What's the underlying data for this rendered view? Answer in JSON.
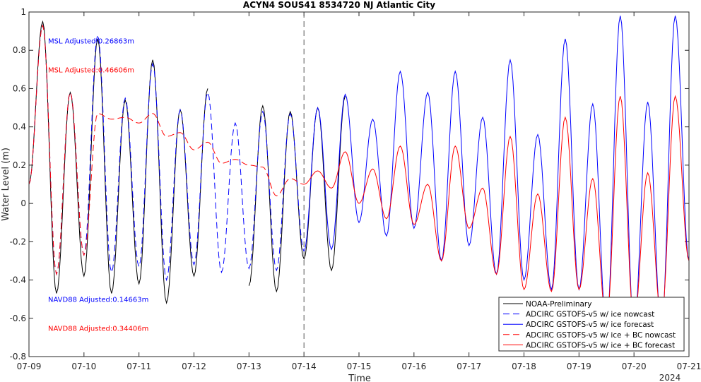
{
  "chart_data": {
    "type": "line",
    "title": "ACYN4 SOUS41 8534720 NJ Atlantic City",
    "xlabel": "Time",
    "ylabel": "Water Level (m)",
    "year_label": "2024",
    "x_ticks": [
      "07-09",
      "07-10",
      "07-11",
      "07-12",
      "07-13",
      "07-14",
      "07-15",
      "07-16",
      "07-17",
      "07-18",
      "07-19",
      "07-20",
      "07-21"
    ],
    "xlim": [
      "07-09 00:00",
      "07-21 00:00"
    ],
    "ylim": [
      -0.8,
      1
    ],
    "y_ticks": [
      -0.8,
      -0.6,
      -0.4,
      -0.2,
      0,
      0.2,
      0.4,
      0.6,
      0.8,
      1
    ],
    "nowcast_forecast_boundary": "07-14 00:00",
    "annotations": [
      {
        "text": "MSL Adjusted:0.26863m",
        "color": "#0000ff",
        "at_y": 0.85
      },
      {
        "text": "MSL Adjusted:0.46606m",
        "color": "#ff0000",
        "at_y": 0.7
      },
      {
        "text": "NAVD88 Adjusted:0.14663m",
        "color": "#0000ff",
        "at_y": -0.5
      },
      {
        "text": "NAVD88 Adjusted:0.34406m",
        "color": "#ff0000",
        "at_y": -0.65
      }
    ],
    "legend_position": "bottom-right",
    "series": [
      {
        "name": "NOAA-Preliminary",
        "color": "#000000",
        "dash": "solid",
        "x": [
          "07-09 00:00",
          "07-09 06:00",
          "07-09 12:00",
          "07-09 18:00",
          "07-10 00:00",
          "07-10 06:00",
          "07-10 12:00",
          "07-10 18:00",
          "07-11 00:00",
          "07-11 06:00",
          "07-11 12:00",
          "07-11 18:00",
          "07-12 00:00",
          "07-12 06:00",
          "07-12 12:00",
          "07-12 18:00",
          "07-13 00:00",
          "07-13 06:00",
          "07-13 12:00",
          "07-13 18:00",
          "07-14 00:00",
          "07-14 06:00",
          "07-14 12:00",
          "07-14 18:00"
        ],
        "y": [
          0.1,
          0.95,
          -0.47,
          0.58,
          -0.38,
          0.86,
          -0.47,
          0.54,
          -0.42,
          0.75,
          -0.52,
          0.49,
          -0.38,
          0.6,
          null,
          null,
          -0.43,
          0.51,
          -0.46,
          0.48,
          -0.29,
          0.5,
          -0.35,
          0.56
        ]
      },
      {
        "name": "ADCIRC GSTOFS-v5 w/ ice nowcast",
        "color": "#0000ff",
        "dash": "dashed",
        "x": [
          "07-09 00:00",
          "07-09 06:00",
          "07-09 12:00",
          "07-09 18:00",
          "07-10 00:00",
          "07-10 06:00",
          "07-10 12:00",
          "07-10 18:00",
          "07-11 00:00",
          "07-11 06:00",
          "07-11 12:00",
          "07-11 18:00",
          "07-12 00:00",
          "07-12 06:00",
          "07-12 12:00",
          "07-12 18:00",
          "07-13 00:00",
          "07-13 06:00",
          "07-13 12:00",
          "07-13 18:00",
          "07-14 00:00"
        ],
        "y": [
          0.1,
          0.93,
          -0.37,
          0.58,
          -0.27,
          0.88,
          -0.36,
          0.55,
          -0.33,
          0.73,
          -0.4,
          0.49,
          -0.32,
          0.58,
          -0.36,
          0.42,
          -0.34,
          0.48,
          -0.35,
          0.47,
          -0.25
        ]
      },
      {
        "name": "ADCIRC GSTOFS-v5 w/ ice forecast",
        "color": "#0000ff",
        "dash": "solid",
        "x": [
          "07-14 00:00",
          "07-14 06:00",
          "07-14 12:00",
          "07-14 18:00",
          "07-15 00:00",
          "07-15 06:00",
          "07-15 12:00",
          "07-15 18:00",
          "07-16 00:00",
          "07-16 06:00",
          "07-16 12:00",
          "07-16 18:00",
          "07-17 00:00",
          "07-17 06:00",
          "07-17 12:00",
          "07-17 18:00",
          "07-18 00:00",
          "07-18 06:00",
          "07-18 12:00",
          "07-18 18:00",
          "07-19 00:00",
          "07-19 06:00",
          "07-19 12:00",
          "07-19 18:00",
          "07-20 00:00",
          "07-20 06:00",
          "07-20 12:00",
          "07-20 18:00",
          "07-21 00:00"
        ],
        "y": [
          -0.25,
          0.5,
          -0.24,
          0.57,
          -0.1,
          0.44,
          -0.17,
          0.69,
          -0.13,
          0.58,
          -0.3,
          0.69,
          -0.22,
          0.45,
          -0.37,
          0.75,
          -0.4,
          0.36,
          -0.45,
          0.86,
          -0.45,
          0.52,
          -0.65,
          0.98,
          -0.65,
          0.53,
          -0.65,
          0.98,
          -0.3
        ]
      },
      {
        "name": "ADCIRC GSTOFS-v5 w/ ice + BC nowcast",
        "color": "#ff0000",
        "dash": "dashed",
        "x": [
          "07-09 00:00",
          "07-09 06:00",
          "07-09 12:00",
          "07-09 18:00",
          "07-10 00:00",
          "07-10 06:00",
          "07-10 12:00",
          "07-10 18:00",
          "07-11 00:00",
          "07-11 06:00",
          "07-11 12:00",
          "07-11 18:00",
          "07-12 00:00",
          "07-12 06:00",
          "07-12 12:00",
          "07-12 18:00",
          "07-13 00:00",
          "07-13 06:00",
          "07-13 12:00",
          "07-13 18:00",
          "07-14 00:00"
        ],
        "y": [
          0.1,
          0.93,
          -0.37,
          0.58,
          -0.27,
          0.47,
          0.44,
          0.45,
          0.42,
          0.47,
          0.35,
          0.37,
          0.28,
          0.32,
          0.21,
          0.23,
          0.2,
          0.19,
          0.04,
          0.13,
          0.1
        ]
      },
      {
        "name": "ADCIRC GSTOFS-v5 w/ ice + BC forecast",
        "color": "#ff0000",
        "dash": "solid",
        "x": [
          "07-14 00:00",
          "07-14 06:00",
          "07-14 12:00",
          "07-14 18:00",
          "07-15 00:00",
          "07-15 06:00",
          "07-15 12:00",
          "07-15 18:00",
          "07-16 00:00",
          "07-16 06:00",
          "07-16 12:00",
          "07-16 18:00",
          "07-17 00:00",
          "07-17 06:00",
          "07-17 12:00",
          "07-17 18:00",
          "07-18 00:00",
          "07-18 06:00",
          "07-18 12:00",
          "07-18 18:00",
          "07-19 00:00",
          "07-19 06:00",
          "07-19 12:00",
          "07-19 18:00",
          "07-20 00:00",
          "07-20 06:00",
          "07-20 12:00",
          "07-20 18:00",
          "07-21 00:00"
        ],
        "y": [
          0.1,
          0.17,
          0.08,
          0.27,
          0,
          0.18,
          -0.08,
          0.3,
          -0.11,
          0.1,
          -0.3,
          0.3,
          -0.13,
          0.08,
          -0.37,
          0.35,
          -0.45,
          0.05,
          -0.46,
          0.45,
          -0.45,
          0.13,
          -0.62,
          0.56,
          -0.62,
          0.16,
          -0.6,
          0.56,
          -0.3
        ]
      }
    ]
  }
}
